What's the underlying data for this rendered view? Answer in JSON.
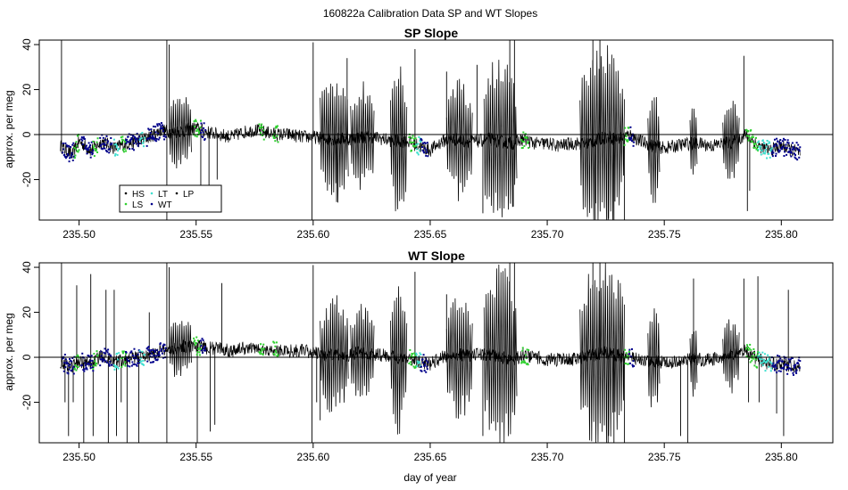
{
  "figure": {
    "suptitle": "160822a   Calibration Data SP and WT Slopes",
    "xlabel": "day of year"
  },
  "colors": {
    "HS": "#000000",
    "LS": "#2fd02f",
    "LT": "#40e0d0",
    "WT": "#00008b",
    "LP": "#000000",
    "axis": "#000000",
    "zero_line": "#000000"
  },
  "legend": {
    "placement": "bottom-left of top panel",
    "entries": [
      {
        "key": "HS",
        "label": "HS"
      },
      {
        "key": "LT",
        "label": "LT"
      },
      {
        "key": "LP",
        "label": "LP"
      },
      {
        "key": "LS",
        "label": "LS"
      },
      {
        "key": "WT",
        "label": "WT"
      }
    ]
  },
  "chart_data": [
    {
      "type": "line",
      "title": "SP Slope",
      "xlabel": "",
      "ylabel": "approx. per meg",
      "xlim": [
        235.483,
        235.822
      ],
      "ylim": [
        -38,
        42
      ],
      "xticks": [
        "235.50",
        "235.55",
        "235.60",
        "235.65",
        "235.70",
        "235.75",
        "235.80"
      ],
      "xtick_values": [
        235.5,
        235.55,
        235.6,
        235.65,
        235.7,
        235.75,
        235.8
      ],
      "yticks": [
        "-20",
        "0",
        "20",
        "40"
      ],
      "ytick_values": [
        -20,
        0,
        20,
        40
      ],
      "zero_line": 0,
      "baseline": [
        [
          235.492,
          -5
        ],
        [
          235.497,
          -9
        ],
        [
          235.5,
          -3
        ],
        [
          235.505,
          -7
        ],
        [
          235.51,
          -3
        ],
        [
          235.515,
          -6
        ],
        [
          235.52,
          -4
        ],
        [
          235.525,
          -3
        ],
        [
          235.53,
          -1
        ],
        [
          235.535,
          2
        ],
        [
          235.54,
          1
        ],
        [
          235.545,
          2
        ],
        [
          235.55,
          3
        ],
        [
          235.555,
          1
        ],
        [
          235.56,
          0
        ],
        [
          235.565,
          -1
        ],
        [
          235.57,
          1
        ],
        [
          235.575,
          2
        ],
        [
          235.58,
          1
        ],
        [
          235.585,
          0
        ],
        [
          235.59,
          0
        ],
        [
          235.595,
          -1
        ],
        [
          235.6,
          -1
        ],
        [
          235.605,
          -2
        ],
        [
          235.61,
          -2
        ],
        [
          235.615,
          -2
        ],
        [
          235.62,
          -1
        ],
        [
          235.625,
          -1
        ],
        [
          235.63,
          -2
        ],
        [
          235.635,
          -3
        ],
        [
          235.64,
          -3
        ],
        [
          235.645,
          -5
        ],
        [
          235.65,
          -7
        ],
        [
          235.655,
          -3
        ],
        [
          235.66,
          -2
        ],
        [
          235.665,
          -3
        ],
        [
          235.67,
          -3
        ],
        [
          235.675,
          -2
        ],
        [
          235.68,
          -3
        ],
        [
          235.685,
          -4
        ],
        [
          235.69,
          -2
        ],
        [
          235.695,
          -4
        ],
        [
          235.7,
          -4
        ],
        [
          235.705,
          -5
        ],
        [
          235.71,
          -4
        ],
        [
          235.715,
          -4
        ],
        [
          235.72,
          -3
        ],
        [
          235.725,
          -1
        ],
        [
          235.73,
          -2
        ],
        [
          235.735,
          0
        ],
        [
          235.74,
          -3
        ],
        [
          235.745,
          -5
        ],
        [
          235.75,
          -6
        ],
        [
          235.755,
          -5
        ],
        [
          235.76,
          -4
        ],
        [
          235.765,
          -4
        ],
        [
          235.77,
          -5
        ],
        [
          235.775,
          -4
        ],
        [
          235.78,
          -3
        ],
        [
          235.785,
          0
        ],
        [
          235.79,
          -5
        ],
        [
          235.795,
          -7
        ],
        [
          235.8,
          -5
        ],
        [
          235.805,
          -7
        ],
        [
          235.808,
          -8
        ]
      ],
      "spikes": [
        [
          235.4925,
          42
        ],
        [
          235.5375,
          -38
        ],
        [
          235.5375,
          42
        ],
        [
          235.5385,
          40
        ],
        [
          235.552,
          -33
        ],
        [
          235.5555,
          -30
        ],
        [
          235.559,
          -20
        ],
        [
          235.5995,
          -38
        ],
        [
          235.6,
          41
        ],
        [
          235.61,
          -30
        ],
        [
          235.6145,
          34
        ],
        [
          235.6435,
          38
        ],
        [
          235.657,
          28
        ],
        [
          235.67,
          31
        ],
        [
          235.6725,
          -35
        ],
        [
          235.684,
          42
        ],
        [
          235.6855,
          -32
        ],
        [
          235.686,
          42
        ],
        [
          235.7195,
          42
        ],
        [
          235.7205,
          -38
        ],
        [
          235.7225,
          42
        ],
        [
          235.726,
          -38
        ],
        [
          235.7285,
          -38
        ],
        [
          235.733,
          -38
        ],
        [
          235.784,
          35
        ],
        [
          235.7855,
          -34
        ],
        [
          235.7865,
          -25
        ]
      ],
      "oscillations": [
        {
          "start": 235.5385,
          "end": 235.548,
          "amplitude": 14
        },
        {
          "start": 235.603,
          "end": 235.615,
          "amplitude": 25
        },
        {
          "start": 235.616,
          "end": 235.626,
          "amplitude": 20
        },
        {
          "start": 235.633,
          "end": 235.64,
          "amplitude": 28
        },
        {
          "start": 235.657,
          "end": 235.668,
          "amplitude": 22
        },
        {
          "start": 235.673,
          "end": 235.687,
          "amplitude": 32
        },
        {
          "start": 235.714,
          "end": 235.733,
          "amplitude": 36
        },
        {
          "start": 235.743,
          "end": 235.748,
          "amplitude": 22
        },
        {
          "start": 235.761,
          "end": 235.764,
          "amplitude": 14
        },
        {
          "start": 235.775,
          "end": 235.782,
          "amplitude": 16
        }
      ],
      "markers": [
        {
          "series": "WT",
          "start": 235.493,
          "end": 235.498
        },
        {
          "series": "LS",
          "start": 235.498,
          "end": 235.5
        },
        {
          "series": "WT",
          "start": 235.501,
          "end": 235.506
        },
        {
          "series": "LS",
          "start": 235.506,
          "end": 235.508
        },
        {
          "series": "WT",
          "start": 235.509,
          "end": 235.514
        },
        {
          "series": "LT",
          "start": 235.515,
          "end": 235.517
        },
        {
          "series": "LS",
          "start": 235.518,
          "end": 235.52
        },
        {
          "series": "WT",
          "start": 235.52,
          "end": 235.526
        },
        {
          "series": "LT",
          "start": 235.526,
          "end": 235.528
        },
        {
          "series": "WT",
          "start": 235.529,
          "end": 235.537
        },
        {
          "series": "LS",
          "start": 235.549,
          "end": 235.552
        },
        {
          "series": "WT",
          "start": 235.552,
          "end": 235.554
        },
        {
          "series": "LS",
          "start": 235.577,
          "end": 235.579
        },
        {
          "series": "LS",
          "start": 235.583,
          "end": 235.585
        },
        {
          "series": "LS",
          "start": 235.641,
          "end": 235.644
        },
        {
          "series": "LT",
          "start": 235.644,
          "end": 235.646
        },
        {
          "series": "WT",
          "start": 235.646,
          "end": 235.649
        },
        {
          "series": "LS",
          "start": 235.689,
          "end": 235.692
        },
        {
          "series": "LS",
          "start": 235.733,
          "end": 235.735
        },
        {
          "series": "WT",
          "start": 235.735,
          "end": 235.737
        },
        {
          "series": "LS",
          "start": 235.785,
          "end": 235.79
        },
        {
          "series": "LT",
          "start": 235.79,
          "end": 235.796
        },
        {
          "series": "WT",
          "start": 235.796,
          "end": 235.808
        }
      ]
    },
    {
      "type": "line",
      "title": "WT Slope",
      "xlabel": "day of year",
      "ylabel": "approx. per meg",
      "xlim": [
        235.483,
        235.822
      ],
      "ylim": [
        -38,
        42
      ],
      "xticks": [
        "235.50",
        "235.55",
        "235.60",
        "235.65",
        "235.70",
        "235.75",
        "235.80"
      ],
      "xtick_values": [
        235.5,
        235.55,
        235.6,
        235.65,
        235.7,
        235.75,
        235.8
      ],
      "yticks": [
        "-20",
        "0",
        "20",
        "40"
      ],
      "ytick_values": [
        -20,
        0,
        20,
        40
      ],
      "zero_line": 0,
      "baseline": [
        [
          235.492,
          -2
        ],
        [
          235.497,
          -4
        ],
        [
          235.5,
          -2
        ],
        [
          235.505,
          -3
        ],
        [
          235.51,
          1
        ],
        [
          235.515,
          -2
        ],
        [
          235.52,
          -1
        ],
        [
          235.525,
          0
        ],
        [
          235.53,
          1
        ],
        [
          235.535,
          3
        ],
        [
          235.54,
          4
        ],
        [
          235.545,
          5
        ],
        [
          235.55,
          5
        ],
        [
          235.555,
          4
        ],
        [
          235.56,
          4
        ],
        [
          235.565,
          3
        ],
        [
          235.57,
          4
        ],
        [
          235.575,
          4
        ],
        [
          235.58,
          3
        ],
        [
          235.585,
          3
        ],
        [
          235.59,
          3
        ],
        [
          235.595,
          3
        ],
        [
          235.6,
          2
        ],
        [
          235.605,
          1
        ],
        [
          235.61,
          1
        ],
        [
          235.615,
          1
        ],
        [
          235.62,
          2
        ],
        [
          235.625,
          1
        ],
        [
          235.63,
          1
        ],
        [
          235.635,
          0
        ],
        [
          235.64,
          0
        ],
        [
          235.645,
          -2
        ],
        [
          235.65,
          -3
        ],
        [
          235.655,
          0
        ],
        [
          235.66,
          1
        ],
        [
          235.665,
          1
        ],
        [
          235.67,
          1
        ],
        [
          235.675,
          1
        ],
        [
          235.68,
          0
        ],
        [
          235.685,
          -1
        ],
        [
          235.69,
          1
        ],
        [
          235.695,
          0
        ],
        [
          235.7,
          -1
        ],
        [
          235.705,
          -1
        ],
        [
          235.71,
          -1
        ],
        [
          235.715,
          0
        ],
        [
          235.72,
          1
        ],
        [
          235.725,
          2
        ],
        [
          235.73,
          1
        ],
        [
          235.735,
          0
        ],
        [
          235.74,
          -1
        ],
        [
          235.745,
          -2
        ],
        [
          235.75,
          -2
        ],
        [
          235.755,
          -2
        ],
        [
          235.76,
          -1
        ],
        [
          235.765,
          -1
        ],
        [
          235.77,
          -1
        ],
        [
          235.775,
          0
        ],
        [
          235.78,
          1
        ],
        [
          235.785,
          3
        ],
        [
          235.79,
          -1
        ],
        [
          235.795,
          -3
        ],
        [
          235.8,
          -3
        ],
        [
          235.805,
          -4
        ],
        [
          235.808,
          -4
        ]
      ],
      "spikes": [
        [
          235.4925,
          42
        ],
        [
          235.494,
          -20
        ],
        [
          235.4955,
          -35
        ],
        [
          235.4975,
          -20
        ],
        [
          235.499,
          32
        ],
        [
          235.502,
          -38
        ],
        [
          235.505,
          37
        ],
        [
          235.506,
          -35
        ],
        [
          235.5115,
          30
        ],
        [
          235.5125,
          -38
        ],
        [
          235.515,
          30
        ],
        [
          235.516,
          -35
        ],
        [
          235.518,
          -20
        ],
        [
          235.5205,
          -38
        ],
        [
          235.5255,
          -38
        ],
        [
          235.53,
          20
        ],
        [
          235.5375,
          -38
        ],
        [
          235.5375,
          42
        ],
        [
          235.5385,
          40
        ],
        [
          235.5505,
          -38
        ],
        [
          235.556,
          -33
        ],
        [
          235.558,
          -30
        ],
        [
          235.561,
          33
        ],
        [
          235.5995,
          -38
        ],
        [
          235.6,
          41
        ],
        [
          235.6015,
          -20
        ],
        [
          235.603,
          -28
        ],
        [
          235.6435,
          38
        ],
        [
          235.657,
          28
        ],
        [
          235.6725,
          -35
        ],
        [
          235.684,
          42
        ],
        [
          235.686,
          42
        ],
        [
          235.7195,
          42
        ],
        [
          235.7225,
          42
        ],
        [
          235.726,
          -38
        ],
        [
          235.7285,
          -38
        ],
        [
          235.733,
          -38
        ],
        [
          235.757,
          -35
        ],
        [
          235.76,
          -38
        ],
        [
          235.7625,
          35
        ],
        [
          235.784,
          35
        ],
        [
          235.786,
          -20
        ],
        [
          235.79,
          36
        ],
        [
          235.7905,
          -20
        ],
        [
          235.798,
          -25
        ],
        [
          235.801,
          -35
        ],
        [
          235.803,
          30
        ]
      ],
      "oscillations": [
        {
          "start": 235.5385,
          "end": 235.548,
          "amplitude": 12
        },
        {
          "start": 235.603,
          "end": 235.615,
          "amplitude": 22
        },
        {
          "start": 235.616,
          "end": 235.626,
          "amplitude": 18
        },
        {
          "start": 235.633,
          "end": 235.64,
          "amplitude": 28
        },
        {
          "start": 235.657,
          "end": 235.668,
          "amplitude": 24
        },
        {
          "start": 235.673,
          "end": 235.687,
          "amplitude": 34
        },
        {
          "start": 235.714,
          "end": 235.733,
          "amplitude": 36
        },
        {
          "start": 235.743,
          "end": 235.748,
          "amplitude": 20
        },
        {
          "start": 235.761,
          "end": 235.764,
          "amplitude": 14
        },
        {
          "start": 235.775,
          "end": 235.782,
          "amplitude": 14
        }
      ],
      "markers": [
        {
          "series": "WT",
          "start": 235.493,
          "end": 235.498
        },
        {
          "series": "LS",
          "start": 235.498,
          "end": 235.5
        },
        {
          "series": "WT",
          "start": 235.501,
          "end": 235.506
        },
        {
          "series": "LS",
          "start": 235.506,
          "end": 235.508
        },
        {
          "series": "WT",
          "start": 235.509,
          "end": 235.514
        },
        {
          "series": "LT",
          "start": 235.515,
          "end": 235.517
        },
        {
          "series": "LS",
          "start": 235.518,
          "end": 235.52
        },
        {
          "series": "WT",
          "start": 235.52,
          "end": 235.526
        },
        {
          "series": "LT",
          "start": 235.526,
          "end": 235.528
        },
        {
          "series": "WT",
          "start": 235.529,
          "end": 235.537
        },
        {
          "series": "LS",
          "start": 235.549,
          "end": 235.552
        },
        {
          "series": "WT",
          "start": 235.552,
          "end": 235.554
        },
        {
          "series": "LS",
          "start": 235.577,
          "end": 235.579
        },
        {
          "series": "LS",
          "start": 235.583,
          "end": 235.585
        },
        {
          "series": "LS",
          "start": 235.641,
          "end": 235.644
        },
        {
          "series": "LT",
          "start": 235.644,
          "end": 235.646
        },
        {
          "series": "WT",
          "start": 235.646,
          "end": 235.649
        },
        {
          "series": "LS",
          "start": 235.689,
          "end": 235.692
        },
        {
          "series": "LS",
          "start": 235.733,
          "end": 235.735
        },
        {
          "series": "WT",
          "start": 235.735,
          "end": 235.737
        },
        {
          "series": "LS",
          "start": 235.785,
          "end": 235.79
        },
        {
          "series": "LT",
          "start": 235.79,
          "end": 235.796
        },
        {
          "series": "WT",
          "start": 235.796,
          "end": 235.808
        }
      ]
    }
  ]
}
